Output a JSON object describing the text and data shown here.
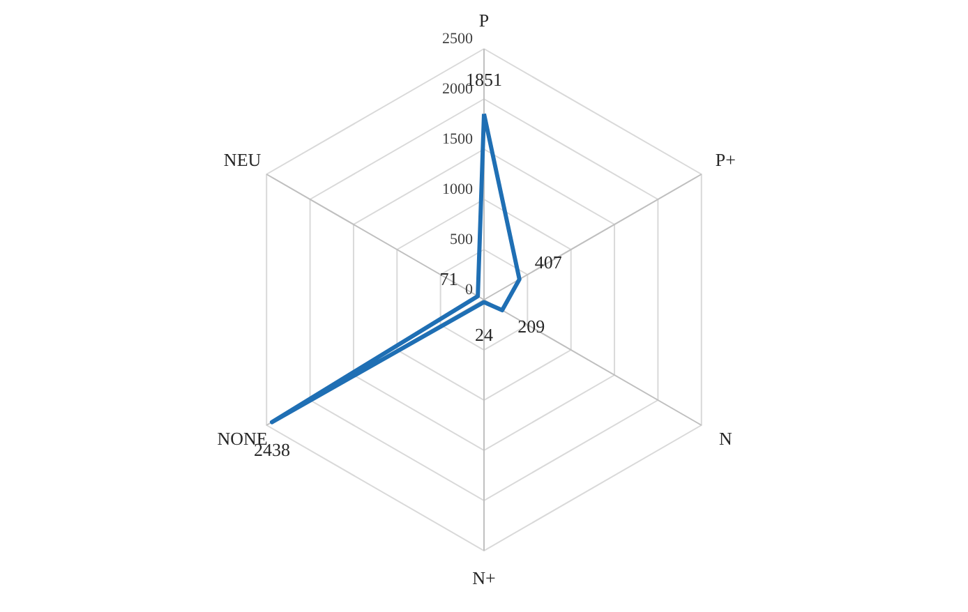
{
  "chart_data": {
    "type": "radar",
    "categories": [
      "P",
      "P+",
      "N",
      "N+",
      "NONE",
      "NEU"
    ],
    "series": [
      {
        "color": "#1f6fb4",
        "values": [
          1851,
          407,
          209,
          24,
          2438,
          71
        ]
      }
    ],
    "ylim": [
      0,
      2500
    ],
    "yticks": [
      0,
      500,
      1000,
      1500,
      2000,
      2500
    ],
    "grid": true,
    "data_labels": true
  }
}
